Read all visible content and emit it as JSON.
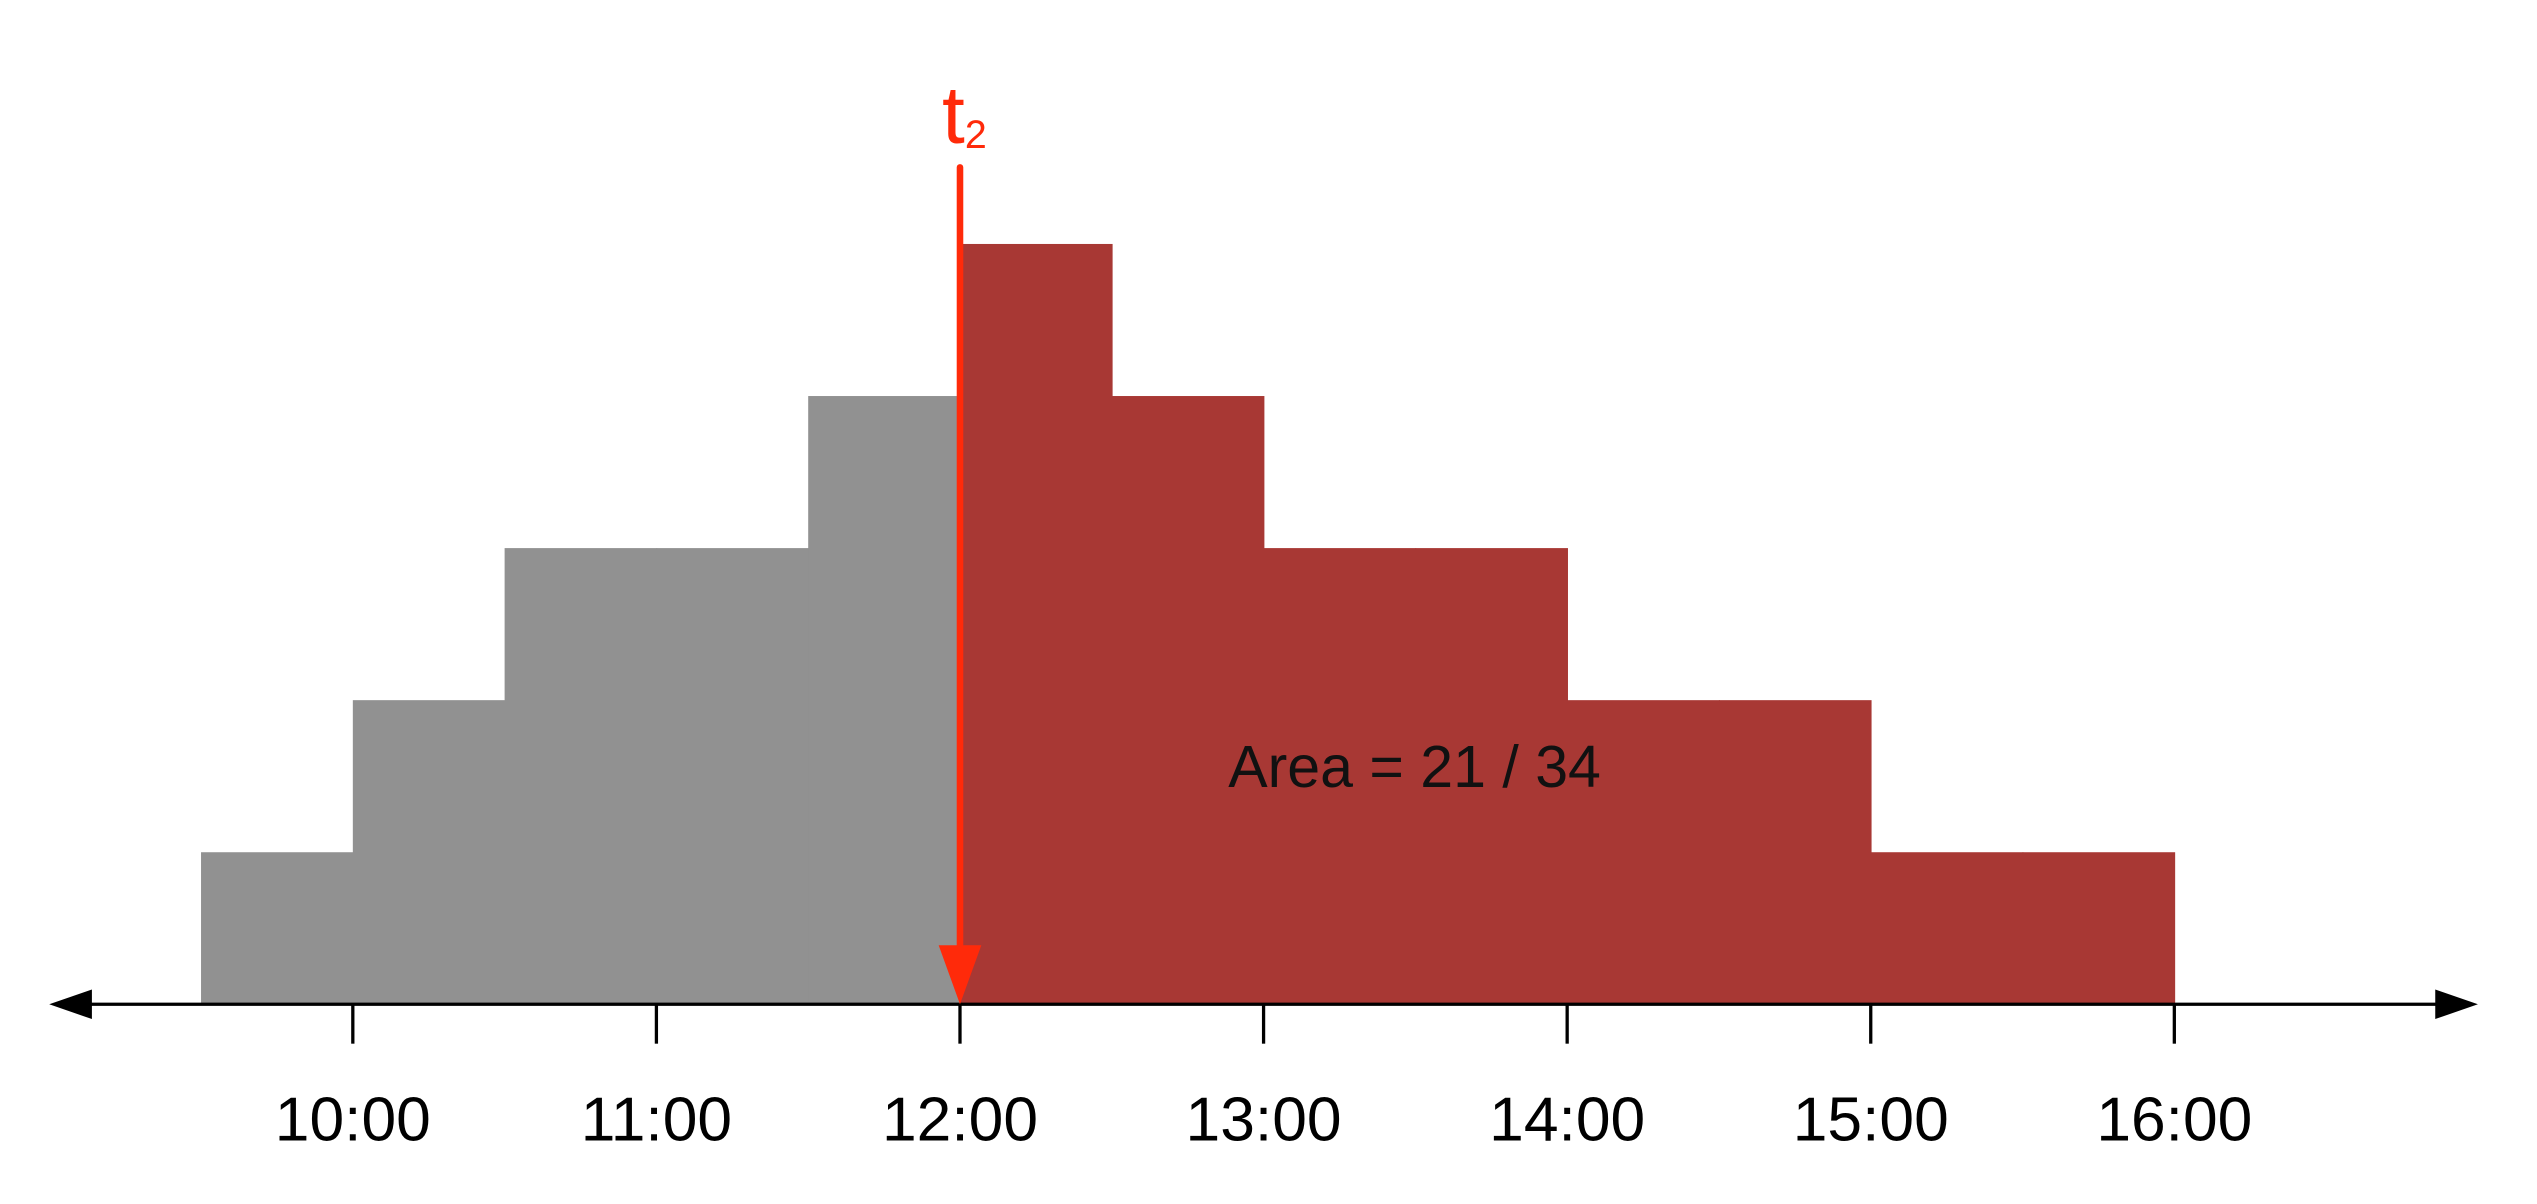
{
  "chart_data": {
    "type": "histogram",
    "bins": [
      9.5,
      10,
      10.5,
      11,
      11.5,
      12,
      12.5,
      13,
      13.5,
      14,
      14.5,
      15,
      15.5,
      16
    ],
    "counts": [
      1,
      2,
      3,
      3,
      4,
      5,
      4,
      3,
      3,
      2,
      2,
      1,
      1
    ],
    "color": "#919191",
    "highlight_color": "#a83834",
    "xlim": [
      9,
      17
    ],
    "xticks": [
      {
        "value": 10,
        "label": "10:00"
      },
      {
        "value": 11,
        "label": "11:00"
      },
      {
        "value": 12,
        "label": "12:00"
      },
      {
        "value": 13,
        "label": "13:00"
      },
      {
        "value": 14,
        "label": "14:00"
      },
      {
        "value": 15,
        "label": "15:00"
      },
      {
        "value": 16,
        "label": "16:00"
      }
    ],
    "ylim": [
      0,
      6
    ],
    "marker": {
      "value": 12,
      "label": "t",
      "subscript": "2",
      "color": "#ff2a0a"
    },
    "annotation": "Area = 21 / 34"
  }
}
